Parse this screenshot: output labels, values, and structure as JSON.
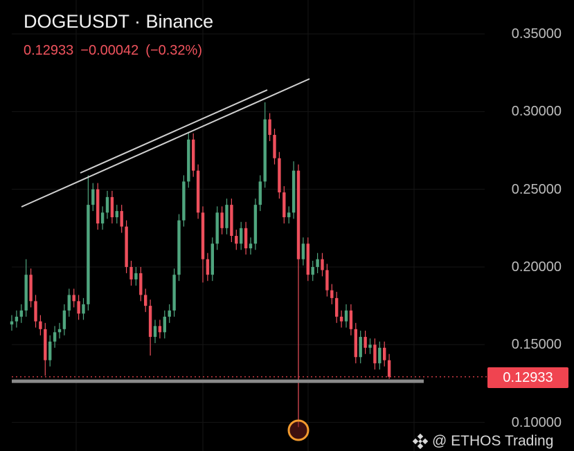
{
  "header": {
    "title": "DOGEUSDT · Binance",
    "last": "0.12933",
    "change": "−0.00042",
    "change_pct": "(−0.32%)"
  },
  "price_label": "0.12933",
  "watermark": "@ ETHOS Trading",
  "colors": {
    "up": "#4fa57e",
    "down": "#ee4f5c",
    "trendline": "#d0d0d0",
    "support": "#8a8a8a",
    "marker": "#f29a2e",
    "background": "#000000"
  },
  "chart_data": {
    "type": "candlestick",
    "symbol": "DOGEUSDT",
    "exchange": "Binance",
    "ylim": [
      0.09,
      0.36
    ],
    "yticks": [
      "0.35000",
      "0.30000",
      "0.25000",
      "0.20000",
      "0.15000",
      "0.10000"
    ],
    "ytick_values": [
      0.35,
      0.3,
      0.25,
      0.2,
      0.15,
      0.1
    ],
    "grid": true,
    "last_price": 0.12933,
    "support_level": 0.1265,
    "candles": [
      [
        0.163,
        0.169,
        0.159,
        0.165
      ],
      [
        0.165,
        0.172,
        0.161,
        0.168
      ],
      [
        0.168,
        0.176,
        0.164,
        0.172
      ],
      [
        0.172,
        0.205,
        0.168,
        0.195
      ],
      [
        0.195,
        0.199,
        0.174,
        0.178
      ],
      [
        0.178,
        0.182,
        0.161,
        0.165
      ],
      [
        0.165,
        0.169,
        0.156,
        0.16
      ],
      [
        0.16,
        0.164,
        0.13,
        0.14
      ],
      [
        0.14,
        0.156,
        0.136,
        0.152
      ],
      [
        0.152,
        0.162,
        0.148,
        0.158
      ],
      [
        0.158,
        0.164,
        0.154,
        0.16
      ],
      [
        0.16,
        0.176,
        0.156,
        0.172
      ],
      [
        0.172,
        0.186,
        0.168,
        0.182
      ],
      [
        0.182,
        0.186,
        0.174,
        0.178
      ],
      [
        0.178,
        0.182,
        0.166,
        0.17
      ],
      [
        0.17,
        0.18,
        0.166,
        0.176
      ],
      [
        0.176,
        0.259,
        0.172,
        0.24
      ],
      [
        0.24,
        0.254,
        0.236,
        0.25
      ],
      [
        0.25,
        0.254,
        0.224,
        0.228
      ],
      [
        0.228,
        0.239,
        0.224,
        0.235
      ],
      [
        0.235,
        0.249,
        0.231,
        0.245
      ],
      [
        0.245,
        0.249,
        0.228,
        0.232
      ],
      [
        0.232,
        0.24,
        0.228,
        0.236
      ],
      [
        0.236,
        0.24,
        0.222,
        0.226
      ],
      [
        0.226,
        0.23,
        0.196,
        0.2
      ],
      [
        0.2,
        0.204,
        0.188,
        0.192
      ],
      [
        0.192,
        0.2,
        0.188,
        0.196
      ],
      [
        0.196,
        0.2,
        0.178,
        0.182
      ],
      [
        0.182,
        0.186,
        0.171,
        0.175
      ],
      [
        0.175,
        0.179,
        0.143,
        0.155
      ],
      [
        0.155,
        0.166,
        0.151,
        0.162
      ],
      [
        0.162,
        0.166,
        0.154,
        0.158
      ],
      [
        0.158,
        0.172,
        0.154,
        0.168
      ],
      [
        0.168,
        0.176,
        0.164,
        0.172
      ],
      [
        0.172,
        0.199,
        0.168,
        0.195
      ],
      [
        0.195,
        0.234,
        0.191,
        0.23
      ],
      [
        0.23,
        0.259,
        0.226,
        0.255
      ],
      [
        0.255,
        0.287,
        0.251,
        0.282
      ],
      [
        0.282,
        0.286,
        0.258,
        0.262
      ],
      [
        0.262,
        0.266,
        0.231,
        0.235
      ],
      [
        0.235,
        0.239,
        0.19,
        0.205
      ],
      [
        0.205,
        0.209,
        0.191,
        0.195
      ],
      [
        0.195,
        0.219,
        0.191,
        0.215
      ],
      [
        0.215,
        0.239,
        0.211,
        0.235
      ],
      [
        0.235,
        0.239,
        0.221,
        0.225
      ],
      [
        0.225,
        0.244,
        0.221,
        0.24
      ],
      [
        0.24,
        0.244,
        0.216,
        0.22
      ],
      [
        0.22,
        0.224,
        0.211,
        0.215
      ],
      [
        0.215,
        0.229,
        0.211,
        0.225
      ],
      [
        0.225,
        0.229,
        0.208,
        0.212
      ],
      [
        0.212,
        0.219,
        0.208,
        0.215
      ],
      [
        0.215,
        0.244,
        0.211,
        0.24
      ],
      [
        0.24,
        0.259,
        0.236,
        0.255
      ],
      [
        0.255,
        0.306,
        0.251,
        0.295
      ],
      [
        0.295,
        0.299,
        0.281,
        0.285
      ],
      [
        0.285,
        0.289,
        0.266,
        0.27
      ],
      [
        0.27,
        0.274,
        0.244,
        0.248
      ],
      [
        0.248,
        0.252,
        0.228,
        0.232
      ],
      [
        0.232,
        0.239,
        0.228,
        0.235
      ],
      [
        0.235,
        0.268,
        0.231,
        0.262
      ],
      [
        0.262,
        0.266,
        0.097,
        0.205
      ],
      [
        0.205,
        0.219,
        0.201,
        0.215
      ],
      [
        0.215,
        0.219,
        0.191,
        0.195
      ],
      [
        0.195,
        0.204,
        0.191,
        0.2
      ],
      [
        0.2,
        0.209,
        0.196,
        0.205
      ],
      [
        0.205,
        0.209,
        0.194,
        0.198
      ],
      [
        0.198,
        0.202,
        0.181,
        0.185
      ],
      [
        0.185,
        0.189,
        0.176,
        0.18
      ],
      [
        0.18,
        0.184,
        0.164,
        0.168
      ],
      [
        0.168,
        0.172,
        0.161,
        0.165
      ],
      [
        0.165,
        0.176,
        0.161,
        0.172
      ],
      [
        0.172,
        0.176,
        0.156,
        0.16
      ],
      [
        0.16,
        0.164,
        0.138,
        0.142
      ],
      [
        0.142,
        0.159,
        0.138,
        0.155
      ],
      [
        0.155,
        0.159,
        0.144,
        0.148
      ],
      [
        0.148,
        0.154,
        0.144,
        0.15
      ],
      [
        0.15,
        0.154,
        0.134,
        0.138
      ],
      [
        0.138,
        0.152,
        0.134,
        0.148
      ],
      [
        0.148,
        0.152,
        0.136,
        0.14
      ],
      [
        0.14,
        0.144,
        0.128,
        0.12933
      ]
    ]
  }
}
